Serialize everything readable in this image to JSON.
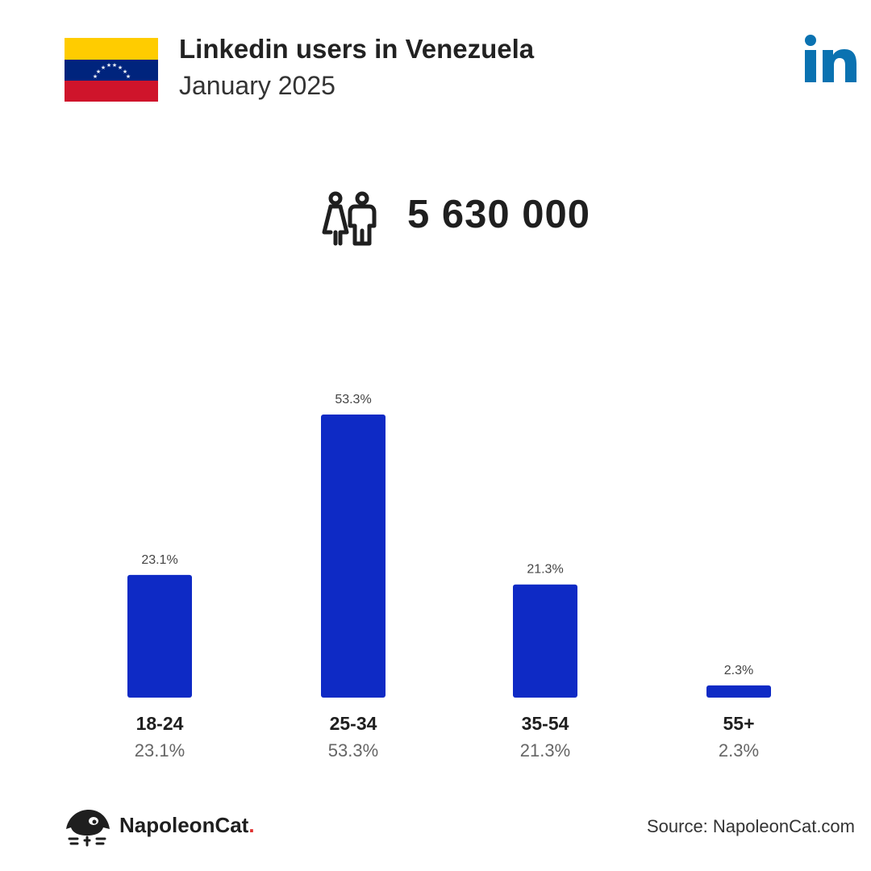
{
  "header": {
    "title": "Linkedin users in Venezuela",
    "subtitle": "January 2025"
  },
  "flag": {
    "country": "Venezuela",
    "colors": [
      "#ffcc00",
      "#00247d",
      "#cf142b"
    ]
  },
  "logo_icon": "linkedin-logo",
  "total": {
    "icon": "users-icon",
    "value": "5 630 000"
  },
  "chart_data": {
    "type": "bar",
    "categories": [
      "18-24",
      "25-34",
      "35-54",
      "55+"
    ],
    "values": [
      23.1,
      53.3,
      21.3,
      2.3
    ],
    "value_labels": [
      "23.1%",
      "53.3%",
      "21.3%",
      "2.3%"
    ],
    "title": "",
    "xlabel": "",
    "ylabel": "",
    "ylim": [
      0,
      53.3
    ],
    "grid": false,
    "bar_color": "#0e2ac5"
  },
  "footer": {
    "brand_name": "NapoleonCat",
    "brand_dot": ".",
    "source": "Source: NapoleonCat.com"
  },
  "colors": {
    "accent": "#0e2ac5",
    "linkedin": "#0a72b1",
    "brand_dot": "#e0312f"
  }
}
